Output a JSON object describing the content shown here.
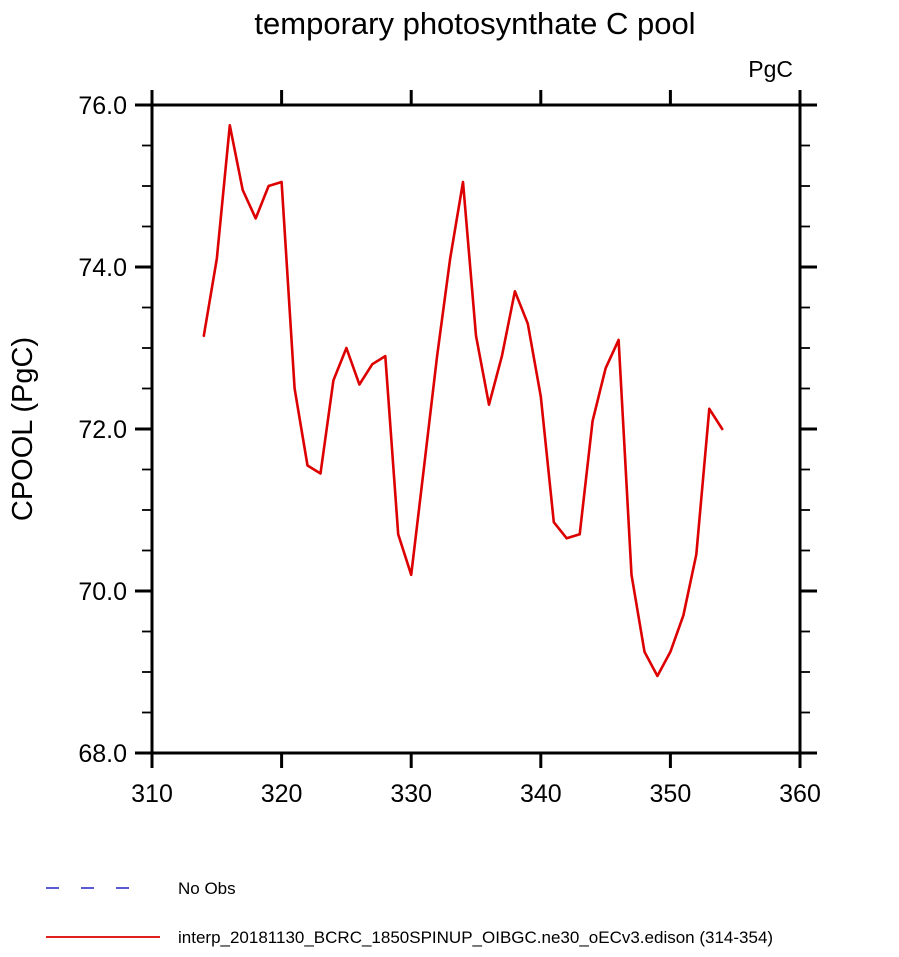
{
  "window": {
    "background": "#ffffff",
    "text_color": "#000000"
  },
  "chart_data": {
    "type": "line",
    "title": "temporary photosynthate C pool",
    "units_label": "PgC",
    "ylabel": "CPOOL (PgC)",
    "xlabel": "",
    "xlim": [
      310,
      360
    ],
    "ylim": [
      68.0,
      76.0
    ],
    "grid": false,
    "legend_position": "bottom-left",
    "x_major_ticks": [
      310,
      320,
      330,
      340,
      350,
      360
    ],
    "x_tick_labels": [
      "310",
      "320",
      "330",
      "340",
      "350",
      "360"
    ],
    "y_major_ticks": [
      68.0,
      70.0,
      72.0,
      74.0,
      76.0
    ],
    "y_tick_labels": [
      "68.0",
      "70.0",
      "72.0",
      "74.0",
      "76.0"
    ],
    "y_minor_ticks": [
      68.5,
      69.0,
      69.5,
      70.5,
      71.0,
      71.5,
      72.5,
      73.0,
      73.5,
      74.5,
      75.0,
      75.5
    ],
    "series": [
      {
        "name": "No Obs",
        "color": "#4343cf",
        "line_style": "dashed",
        "x": [],
        "values": []
      },
      {
        "name": "interp_20181130_BCRC_1850SPINUP_OIBGC.ne30_oECv3.edison (314-354)",
        "color": "#dd0000",
        "line_style": "solid",
        "x": [
          314,
          315,
          316,
          317,
          318,
          319,
          320,
          321,
          322,
          323,
          324,
          325,
          326,
          327,
          328,
          329,
          330,
          331,
          332,
          333,
          334,
          335,
          336,
          337,
          338,
          339,
          340,
          341,
          342,
          343,
          344,
          345,
          346,
          347,
          348,
          349,
          350,
          351,
          352,
          353,
          354
        ],
        "values": [
          73.15,
          74.1,
          75.75,
          74.95,
          74.6,
          75.0,
          75.05,
          72.5,
          71.55,
          71.45,
          72.6,
          73.0,
          72.55,
          72.8,
          72.9,
          70.7,
          70.2,
          71.55,
          72.9,
          74.1,
          75.05,
          73.15,
          72.3,
          72.9,
          73.7,
          73.3,
          72.4,
          70.85,
          70.65,
          70.7,
          72.1,
          72.75,
          73.1,
          70.2,
          69.25,
          68.95,
          69.25,
          69.7,
          70.45,
          72.25,
          72.0
        ]
      }
    ]
  }
}
